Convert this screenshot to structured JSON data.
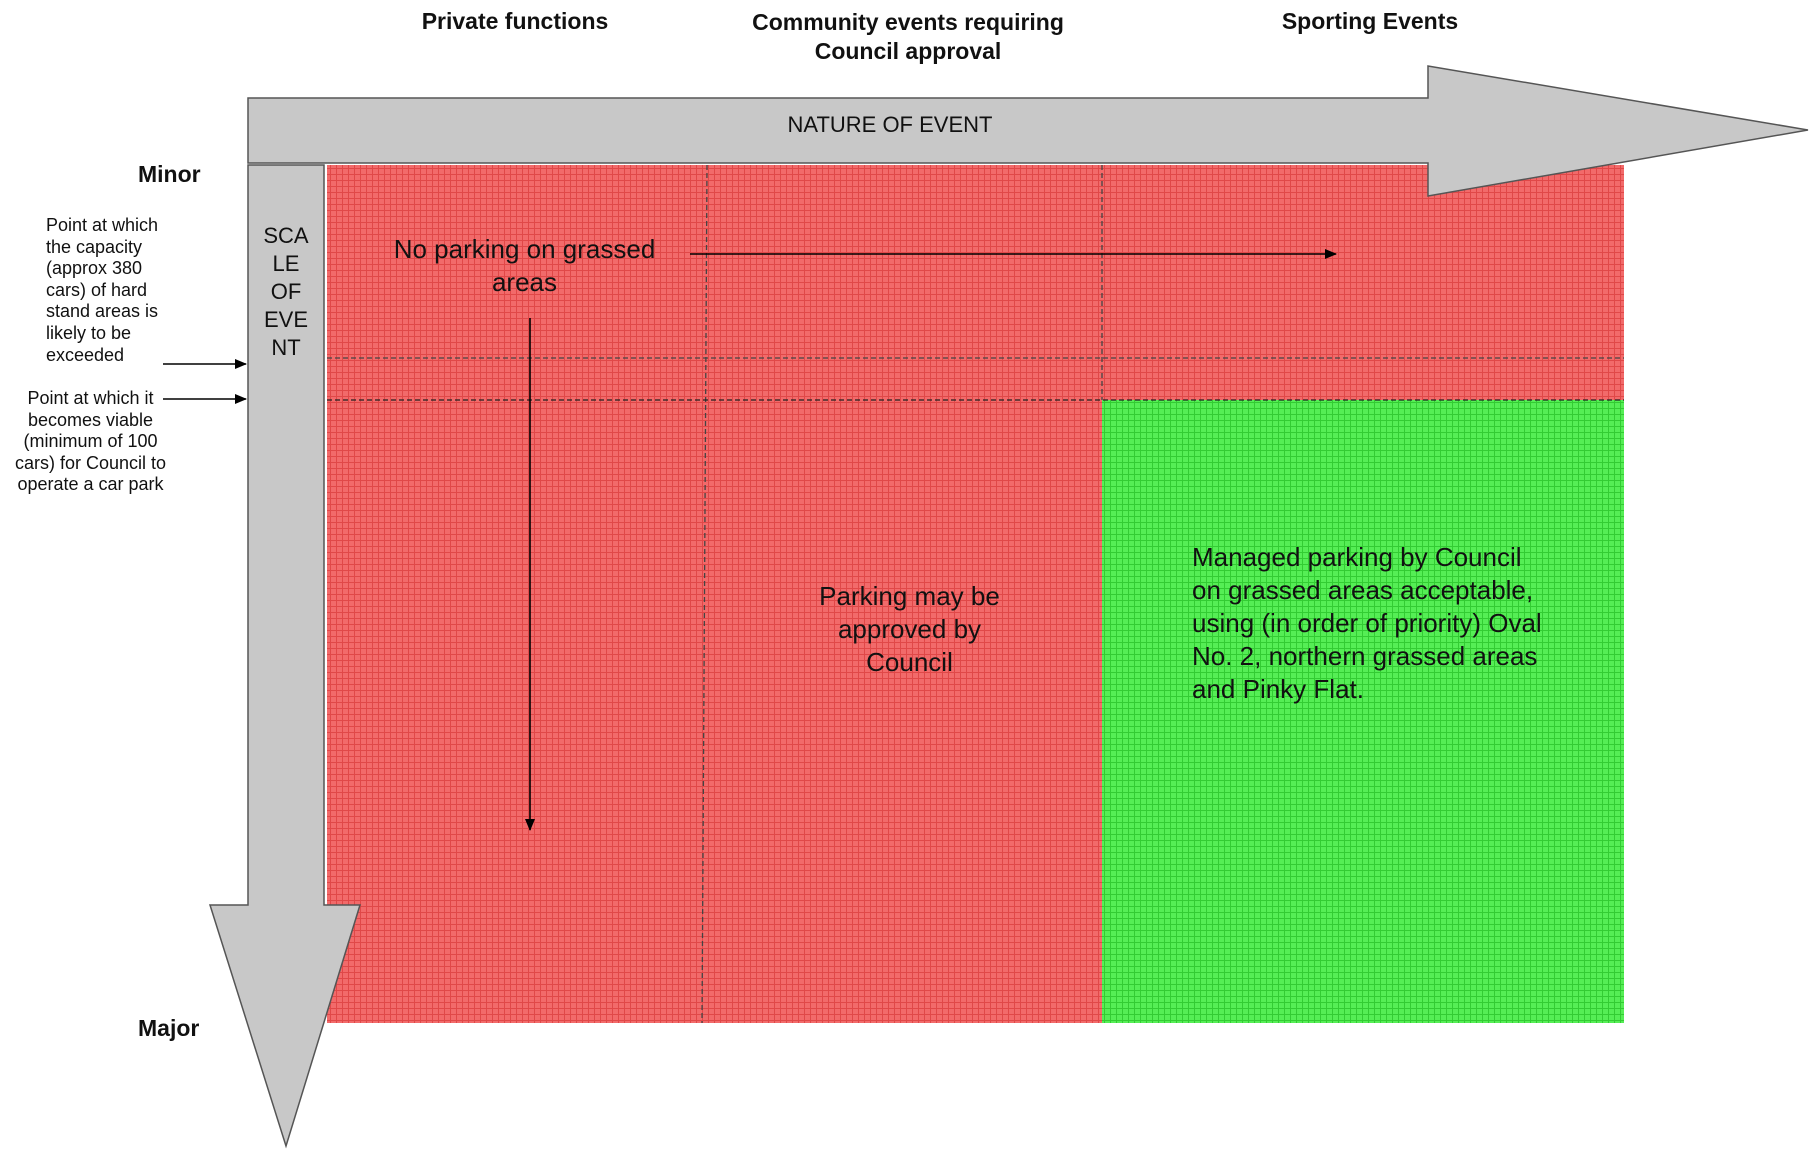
{
  "columns": [
    "Private functions",
    "Community events requiring Council approval",
    "Sporting Events"
  ],
  "horizontal_axis": {
    "label": "NATURE OF EVENT"
  },
  "vertical_axis": {
    "label": "SCALE OF EVENT",
    "top_label": "Minor",
    "bottom_label": "Major"
  },
  "threshold_notes": [
    "Point at which the capacity (approx 380 cars) of hard stand areas is likely to be exceeded",
    "Point at which it becomes viable (minimum of 100 cars) for Council to operate a car park"
  ],
  "zones": {
    "no_parking": "No parking on grassed areas",
    "may_be_approved": "Parking may be approved by Council",
    "managed_parking": "Managed parking by Council on grassed areas acceptable, using (in order of priority) Oval No. 2, northern grassed areas and Pinky Flat."
  },
  "colors": {
    "red_zone": "#f26a6a",
    "green_zone": "#55ee55",
    "arrow_fill": "#c8c8c8",
    "arrow_stroke": "#555555"
  }
}
